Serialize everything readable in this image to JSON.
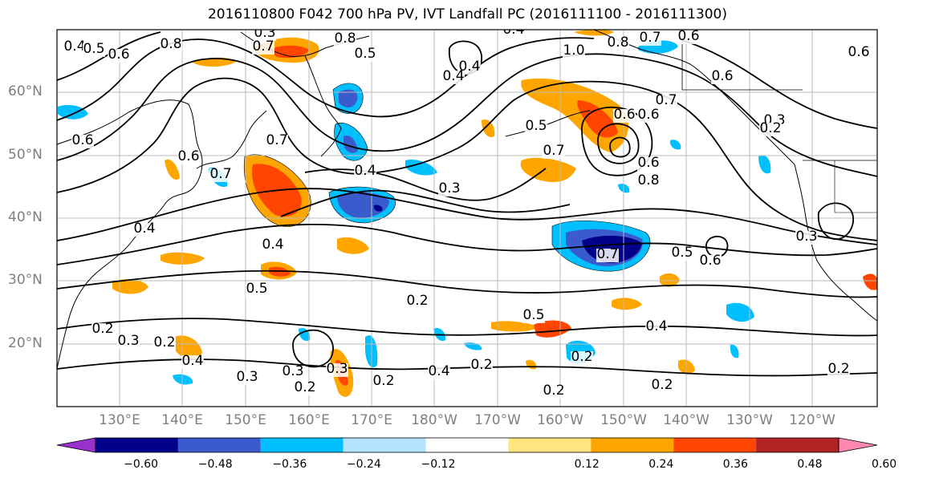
{
  "title": "2016110800 F042 700 hPa PV, IVT Landfall PC (2016111100 - 2016111300)",
  "lat_labels": [
    "60°N",
    "50°N",
    "40°N",
    "30°N",
    "20°N"
  ],
  "lon_labels": [
    "130°E",
    "140°E",
    "150°E",
    "160°E",
    "170°E",
    "180°W",
    "170°W",
    "160°W",
    "150°W",
    "140°W",
    "130°W",
    "120°W"
  ],
  "colorbar": {
    "ticks": [
      "−0.60",
      "−0.48",
      "−0.36",
      "−0.24",
      "−0.12",
      "0.12",
      "0.24",
      "0.36",
      "0.48",
      "0.60"
    ],
    "colors": [
      "#9932cc",
      "#00008b",
      "#3a5bcc",
      "#00bfff",
      "#b3e4fd",
      "#ffffff",
      "#ffe680",
      "#ffa500",
      "#ff4500",
      "#b22222",
      "#ff88b0"
    ]
  },
  "contour_labels": [
    "0.4",
    "0.5",
    "0.8",
    "0.3",
    "0.7",
    "0.8",
    "0.5",
    "0.4",
    "1.0",
    "0.8",
    "0.7",
    "0.6",
    "0.7",
    "0.6",
    "0.6",
    "0.6",
    "0.4",
    "0.7",
    "0.6",
    "0.5",
    "0.6",
    "0.7",
    "0.6",
    "0.8",
    "0.4",
    "0.6",
    "0.4",
    "0.3",
    "0.6",
    "0.7",
    "0.4",
    "0.4",
    "0.5",
    "0.6",
    "0.5",
    "0.3",
    "0.2",
    "0.3",
    "0.5",
    "0.7",
    "0.3",
    "0.2",
    "0.3",
    "0.4",
    "0.2",
    "0.3",
    "0.2",
    "0.2",
    "0.4",
    "0.2",
    "0.2",
    "0.2",
    "0.2",
    "0.2",
    "0.6",
    "0.3",
    "0.2",
    "0.4"
  ],
  "colors": {
    "contour": "#000000",
    "grid": "#bbbbbb",
    "coast": "#000000",
    "tick_label": "#7f7f7f"
  }
}
